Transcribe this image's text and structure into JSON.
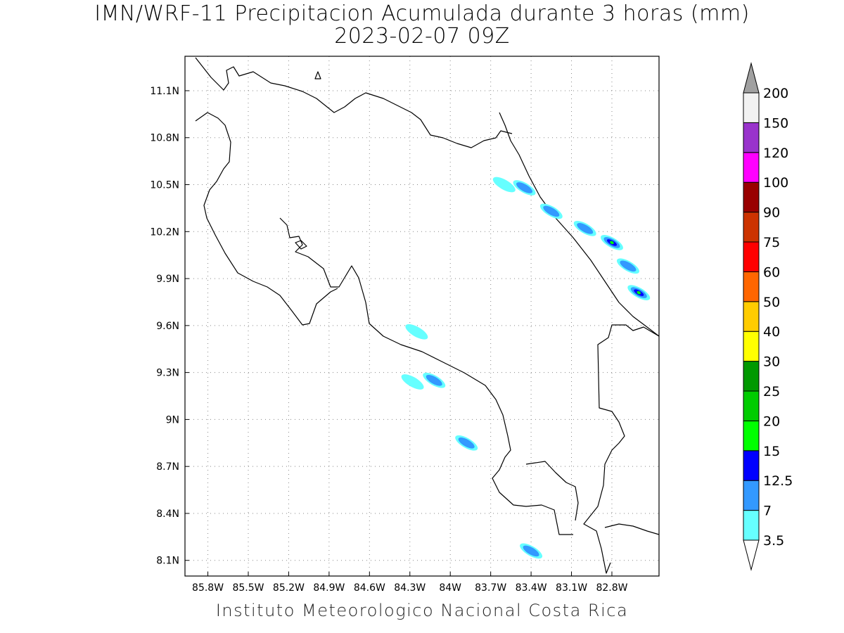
{
  "title": "IMN/WRF-11 Precipitacion Acumulada durante 3 horas (mm)",
  "subtitle": "2023-02-07 09Z",
  "footer": "Instituto Meteorologico Nacional Costa Rica",
  "map": {
    "lon_range": [
      -85.97,
      -82.45
    ],
    "lat_range": [
      8.0,
      11.32
    ],
    "lon_ticks": [
      "85.8W",
      "85.5W",
      "85.2W",
      "84.9W",
      "84.6W",
      "84.3W",
      "84W",
      "83.7W",
      "83.4W",
      "83.1W",
      "82.8W"
    ],
    "lat_ticks": [
      "11.1N",
      "10.8N",
      "10.5N",
      "10.2N",
      "9.9N",
      "9.6N",
      "9.3N",
      "9N",
      "8.7N",
      "8.4N",
      "8.1N"
    ],
    "grid": "dotted"
  },
  "colorbar": {
    "labels": [
      "3.5",
      "7",
      "12.5",
      "15",
      "20",
      "25",
      "30",
      "40",
      "50",
      "60",
      "75",
      "90",
      "100",
      "120",
      "150",
      "200"
    ],
    "colors": [
      "#66ffff",
      "#3399ff",
      "#0000ff",
      "#00ff00",
      "#00cc00",
      "#009900",
      "#ffff00",
      "#ffcc00",
      "#ff6600",
      "#ff0000",
      "#cc3300",
      "#990000",
      "#ff00ff",
      "#9933cc",
      "#f2f2f2"
    ],
    "over_color": "#a0a0a0",
    "under_color": "#ffffff"
  },
  "precip_cells": [
    {
      "lon": -83.45,
      "lat": 10.48,
      "level": 1
    },
    {
      "lon": -83.6,
      "lat": 10.5,
      "level": 0
    },
    {
      "lon": -83.25,
      "lat": 10.33,
      "level": 1
    },
    {
      "lon": -83.0,
      "lat": 10.22,
      "level": 1
    },
    {
      "lon": -82.8,
      "lat": 10.13,
      "level": 3
    },
    {
      "lon": -82.68,
      "lat": 9.98,
      "level": 1
    },
    {
      "lon": -82.6,
      "lat": 9.81,
      "level": 3
    },
    {
      "lon": -84.12,
      "lat": 9.25,
      "level": 1
    },
    {
      "lon": -83.88,
      "lat": 8.85,
      "level": 1
    },
    {
      "lon": -83.4,
      "lat": 8.16,
      "level": 1
    },
    {
      "lon": -84.28,
      "lat": 9.24,
      "level": 0
    },
    {
      "lon": -84.25,
      "lat": 9.56,
      "level": 0
    }
  ]
}
